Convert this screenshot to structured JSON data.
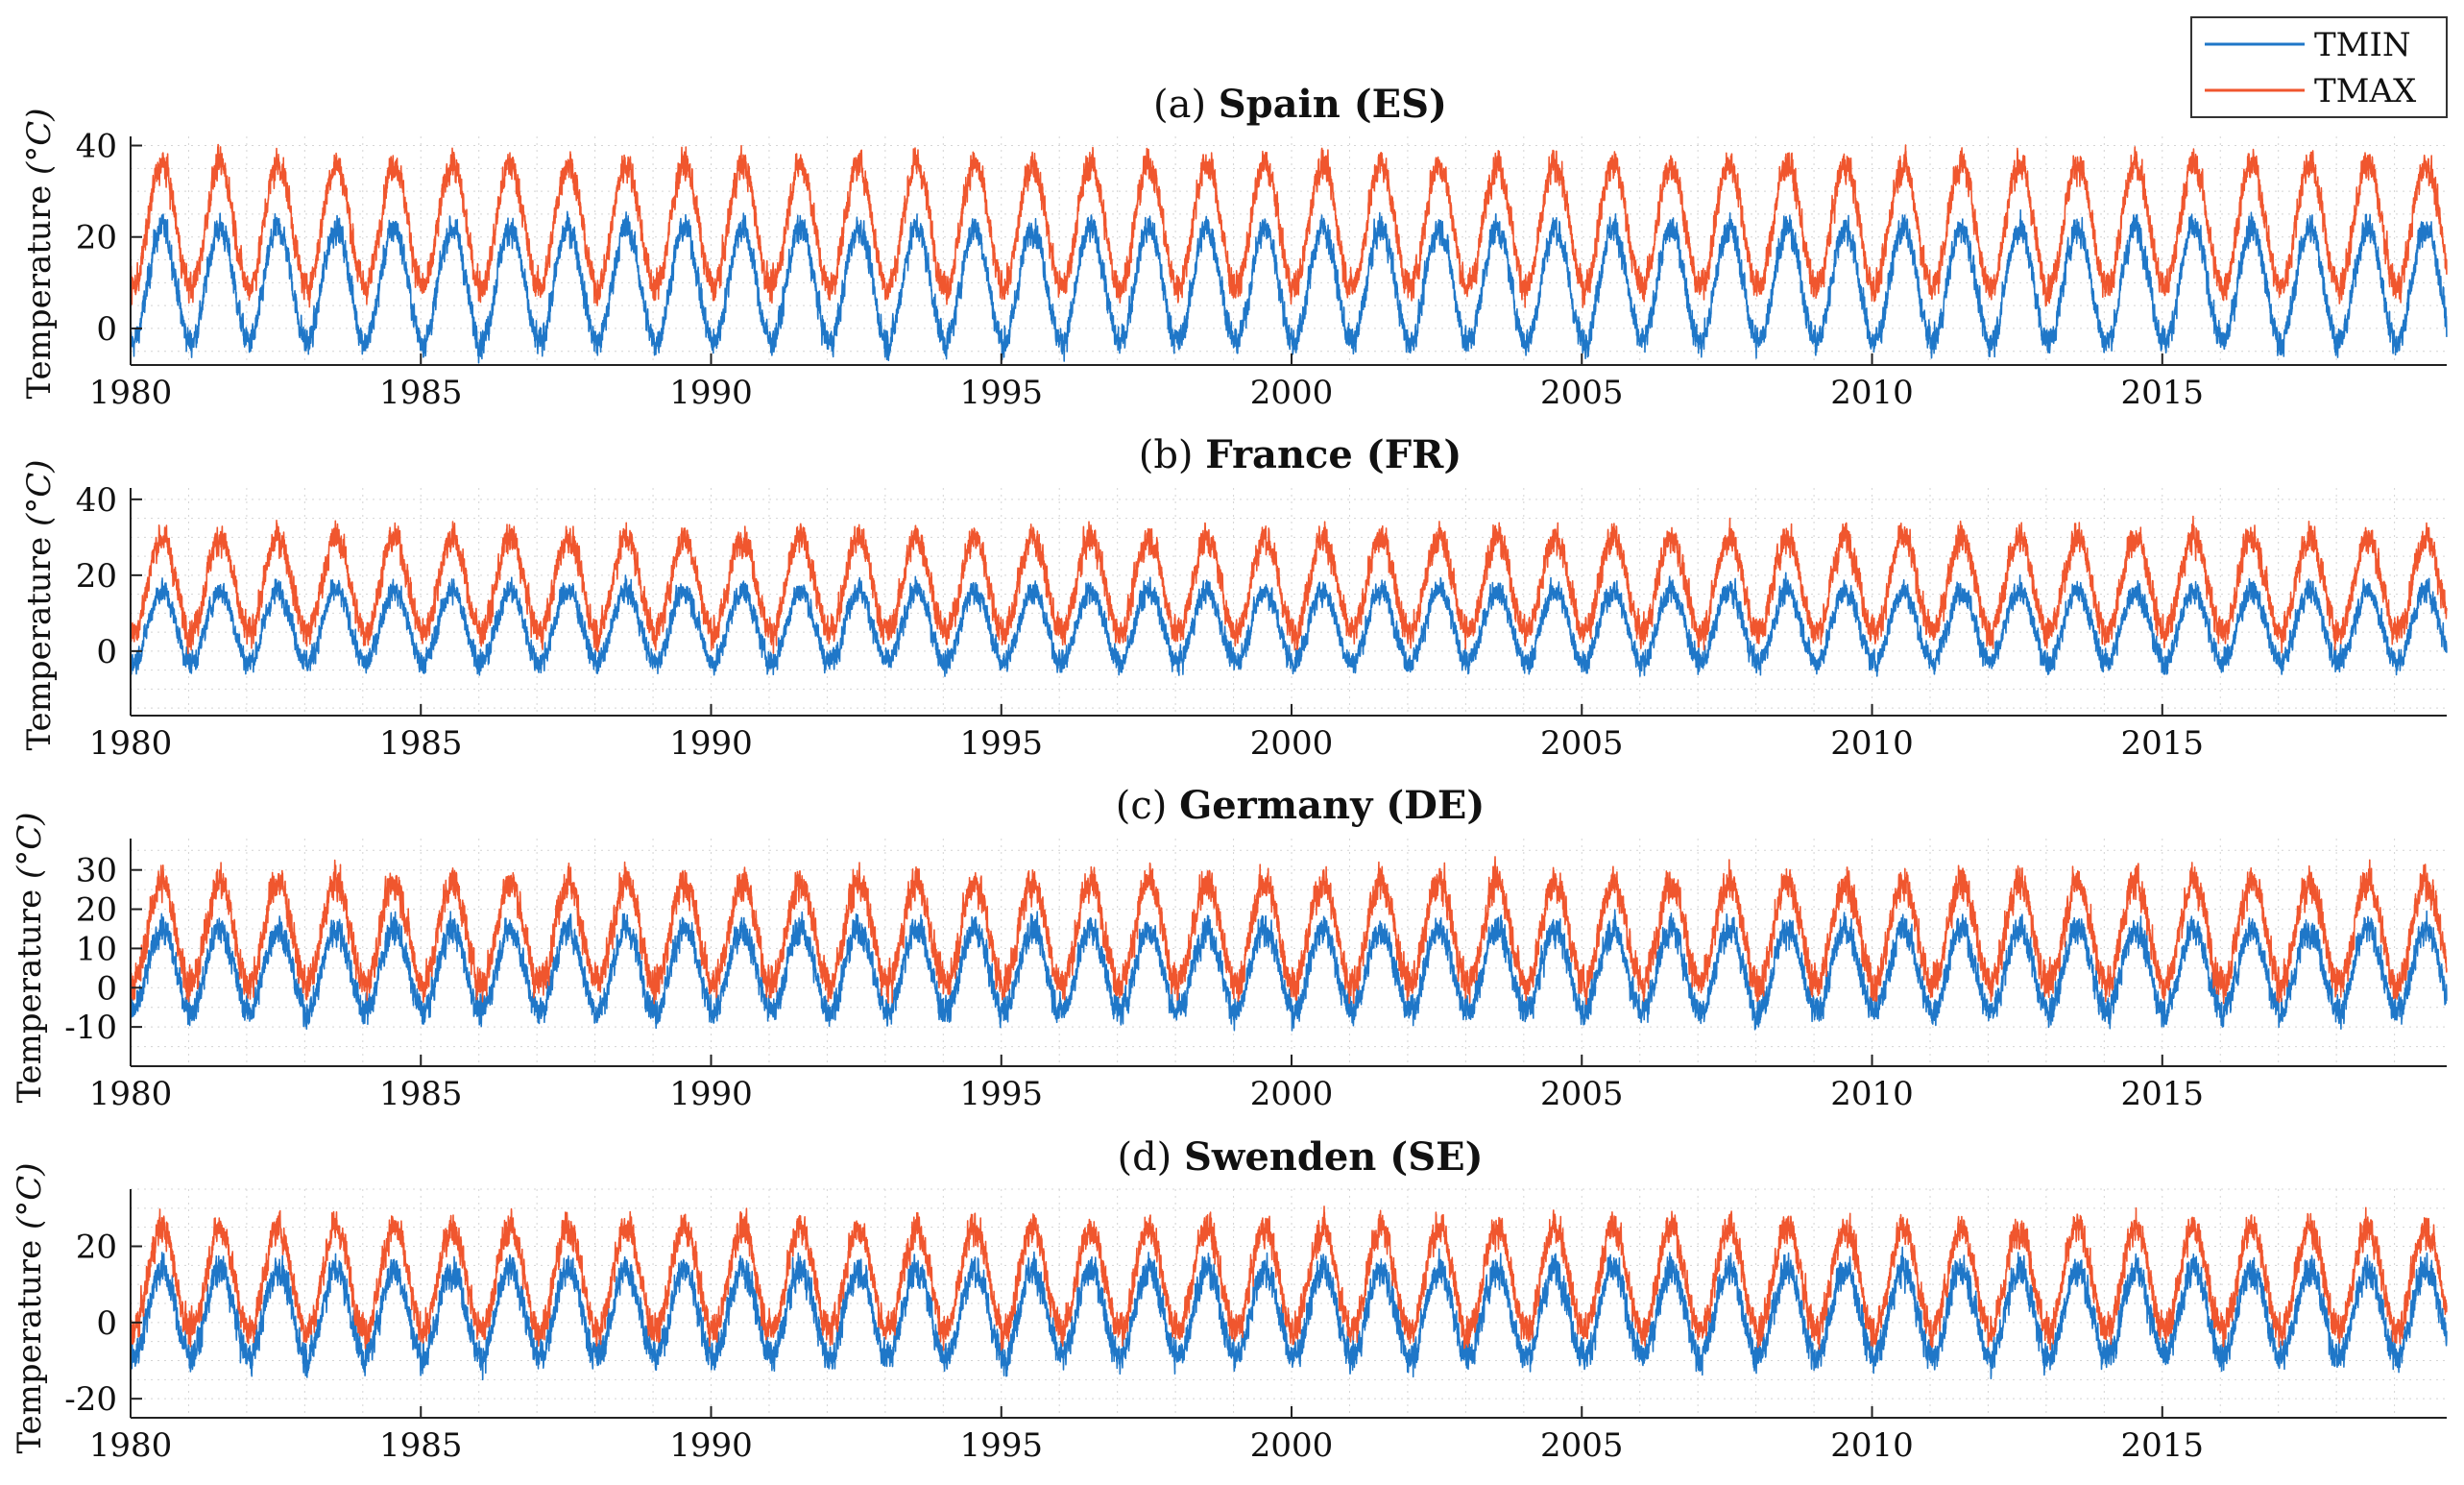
{
  "chart_data": {
    "type": "line",
    "legend": {
      "placement": "top-right",
      "entries": [
        {
          "name": "TMIN",
          "color": "#1f77c8"
        },
        {
          "name": "TMAX",
          "color": "#f0562e"
        }
      ]
    },
    "x_tick_labels": [
      "1980",
      "1985",
      "1990",
      "1995",
      "2000",
      "2005",
      "2010",
      "2015"
    ],
    "xlim": [
      1980,
      2019.9
    ],
    "panels": [
      {
        "prefix": "(a)",
        "title": "Spain (ES)",
        "ylabel": "Temperature",
        "yunit": "(°C)",
        "ylim": [
          -8,
          42
        ],
        "yticks": [
          0,
          20,
          40
        ],
        "ytick_labels": [
          "0",
          "20",
          "40"
        ],
        "series": [
          {
            "name": "TMIN",
            "annual_min": -3,
            "annual_max": 22,
            "noise": 3.0
          },
          {
            "name": "TMAX",
            "annual_min": 9,
            "annual_max": 36,
            "noise": 3.2
          }
        ]
      },
      {
        "prefix": "(b)",
        "title": "France (FR)",
        "ylabel": "Temperature",
        "yunit": "(°C)",
        "ylim": [
          -17,
          43
        ],
        "yticks": [
          0,
          20,
          40
        ],
        "ytick_labels": [
          "0",
          "20",
          "40"
        ],
        "series": [
          {
            "name": "TMIN",
            "annual_min": -3,
            "annual_max": 16,
            "noise": 3.0
          },
          {
            "name": "TMAX",
            "annual_min": 5,
            "annual_max": 30,
            "noise": 3.8
          }
        ]
      },
      {
        "prefix": "(c)",
        "title": "Germany (DE)",
        "ylabel": "Temperature",
        "yunit": "(°C)",
        "ylim": [
          -20,
          38
        ],
        "yticks": [
          -10,
          0,
          10,
          20,
          30
        ],
        "ytick_labels": [
          "-10",
          "0",
          "10",
          "20",
          "30"
        ],
        "series": [
          {
            "name": "TMIN",
            "annual_min": -6,
            "annual_max": 15,
            "noise": 3.6
          },
          {
            "name": "TMAX",
            "annual_min": 1,
            "annual_max": 27,
            "noise": 4.2
          }
        ]
      },
      {
        "prefix": "(d)",
        "title": "Swenden (SE)",
        "ylabel": "Temperature",
        "yunit": "(°C)",
        "ylim": [
          -25,
          35
        ],
        "yticks": [
          -20,
          0,
          20
        ],
        "ytick_labels": [
          "-20",
          "0",
          "20"
        ],
        "series": [
          {
            "name": "TMIN",
            "annual_min": -9,
            "annual_max": 14,
            "noise": 4.0
          },
          {
            "name": "TMAX",
            "annual_min": -2,
            "annual_max": 25,
            "noise": 4.0
          }
        ]
      }
    ]
  }
}
